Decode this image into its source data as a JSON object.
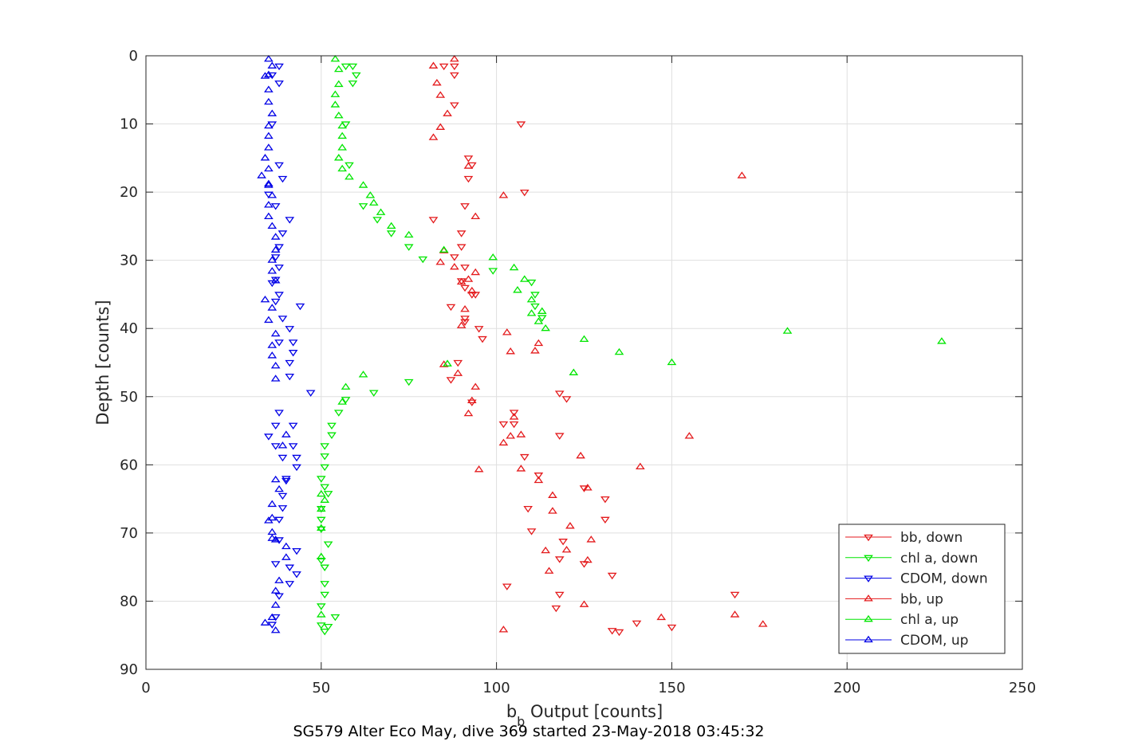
{
  "chart_data": {
    "type": "scatter",
    "caption": "SG579 Alter Eco May, dive 369 started 23-May-2018 03:45:32",
    "xlabel_main": "b",
    "xlabel_sub": "b",
    "xlabel_rest": " Output [counts]",
    "ylabel": "Depth [counts]",
    "xlim": [
      0,
      250
    ],
    "ylim": [
      0,
      90
    ],
    "y_reversed": true,
    "grid": true,
    "legend_position": "bottom-right",
    "xticks": [
      "0",
      "50",
      "100",
      "150",
      "200",
      "250"
    ],
    "yticks": [
      "0",
      "10",
      "20",
      "30",
      "40",
      "50",
      "60",
      "70",
      "80",
      "90"
    ],
    "series": [
      {
        "name": "bb, down",
        "color": "#e41a1c",
        "marker": "triangle-down",
        "x": [
          88,
          85,
          88,
          88,
          107,
          92,
          93,
          92,
          108,
          91,
          82,
          90,
          90,
          88,
          91,
          94,
          90,
          91,
          93,
          87,
          91,
          91,
          95,
          96,
          89,
          87,
          118,
          93,
          120,
          105,
          105,
          102,
          118,
          108,
          112,
          125,
          131,
          109,
          131,
          110,
          119,
          118,
          125,
          133,
          103,
          118,
          117,
          168,
          140,
          150,
          133,
          135
        ],
        "y": [
          1.5,
          1.5,
          2.8,
          7.2,
          10,
          15,
          16,
          18,
          20,
          22,
          24,
          26,
          28,
          29.5,
          31,
          35,
          33,
          34,
          35,
          36.8,
          38.5,
          39,
          40,
          41.5,
          45,
          47.5,
          49.5,
          50.8,
          50.3,
          52.3,
          54,
          54,
          55.7,
          58.8,
          61.5,
          63.4,
          65,
          66.4,
          68,
          69.7,
          71.2,
          73.8,
          74.5,
          76.2,
          77.8,
          79,
          81,
          79,
          83.2,
          83.8,
          84.3,
          84.5
        ]
      },
      {
        "name": "chl a, down",
        "color": "#00e600",
        "marker": "triangle-down",
        "x": [
          59,
          57,
          60,
          59,
          57,
          58,
          66,
          62,
          70,
          75,
          79,
          99,
          110,
          111,
          111,
          113,
          75,
          65,
          57,
          55,
          53,
          53,
          51,
          51,
          51,
          50,
          51,
          52,
          50,
          50,
          50,
          52,
          50,
          51,
          51,
          51,
          50,
          50,
          54,
          52,
          51
        ],
        "y": [
          1.5,
          1.5,
          2.8,
          4,
          10,
          16,
          24,
          22,
          26,
          28,
          29.8,
          31.5,
          33.2,
          35,
          36.7,
          38.4,
          47.8,
          49.4,
          50.4,
          52.3,
          54.2,
          55.6,
          57.2,
          58.7,
          60.3,
          62,
          63.2,
          64.2,
          66.4,
          68,
          69.4,
          71.6,
          74,
          75,
          77.4,
          79,
          80.7,
          83.5,
          82.3,
          83.7,
          84.4
        ]
      },
      {
        "name": "CDOM, down",
        "color": "#0000e6",
        "marker": "triangle-down",
        "x": [
          38,
          36,
          38,
          36,
          35,
          38,
          39,
          37,
          41,
          39,
          38,
          37,
          38,
          37,
          36,
          38,
          37,
          39,
          41,
          44,
          38,
          42,
          42,
          41,
          41,
          47,
          38,
          37,
          42,
          35,
          37,
          42,
          39,
          43,
          43,
          40,
          40,
          39,
          39,
          38,
          43,
          38,
          41,
          37,
          43,
          41,
          38,
          37,
          36
        ],
        "y": [
          1.5,
          2.8,
          4,
          10,
          20.3,
          16,
          18,
          22,
          24,
          26,
          28,
          29.5,
          31,
          32.8,
          33.3,
          35,
          36,
          38.5,
          40,
          36.7,
          42,
          42,
          43.5,
          45,
          47,
          49.4,
          52.3,
          54.2,
          54.2,
          55.8,
          57.2,
          57.2,
          58.9,
          58.9,
          60.3,
          62,
          62.3,
          64.5,
          66.3,
          68,
          72.6,
          71,
          75,
          74.5,
          76,
          77.4,
          79.2,
          82.3,
          83.4
        ]
      },
      {
        "name": "bb, up",
        "color": "#e41a1c",
        "marker": "triangle-up",
        "x": [
          88,
          82,
          83,
          84,
          86,
          84,
          82,
          92,
          170,
          102,
          94,
          85,
          84,
          88,
          94,
          92,
          90,
          93,
          91,
          90,
          103,
          104,
          111,
          112,
          85,
          89,
          94,
          93,
          92,
          104,
          102,
          155,
          95,
          124,
          141,
          112,
          116,
          116,
          121,
          127,
          120,
          126,
          114,
          115,
          125,
          102,
          168,
          176,
          147,
          126,
          107,
          107,
          105
        ],
        "y": [
          0.5,
          1.5,
          4,
          5.8,
          8.5,
          10.5,
          12,
          16.2,
          17.6,
          20.5,
          23.6,
          28.6,
          30.3,
          31,
          31.8,
          32.8,
          33.2,
          34.5,
          37.2,
          39.6,
          40.6,
          43.4,
          43.3,
          42.2,
          45.3,
          46.6,
          48.6,
          50.6,
          52.5,
          55.8,
          56.8,
          55.8,
          60.7,
          58.7,
          60.3,
          62.3,
          64.5,
          66.8,
          69,
          71,
          72.5,
          74,
          72.6,
          75.6,
          80.5,
          84.2,
          82,
          83.4,
          82.4,
          63.4,
          60.6,
          55.6,
          53
        ]
      },
      {
        "name": "chl a, up",
        "color": "#00e600",
        "marker": "triangle-up",
        "x": [
          54,
          55,
          55,
          54,
          54,
          55,
          56,
          56,
          56,
          55,
          56,
          58,
          62,
          64,
          65,
          67,
          70,
          75,
          85,
          99,
          105,
          108,
          106,
          110,
          110,
          113,
          114,
          112,
          183,
          125,
          227,
          135,
          150,
          122,
          62,
          86,
          57,
          56,
          50,
          51,
          50,
          50,
          50,
          50
        ],
        "y": [
          0.5,
          2,
          4.2,
          5.7,
          7.2,
          8.8,
          10.3,
          11.8,
          13.5,
          15,
          16.6,
          17.8,
          19,
          20.5,
          21.6,
          23,
          25,
          26.3,
          28.5,
          29.6,
          31.1,
          32.8,
          34.4,
          35.8,
          37.8,
          37.5,
          40,
          39,
          40.4,
          41.6,
          41.9,
          43.5,
          45,
          46.5,
          46.8,
          45.2,
          48.6,
          50.8,
          64.3,
          65.2,
          66.5,
          69.3,
          73.5,
          82
        ]
      },
      {
        "name": "CDOM, up",
        "color": "#0000e6",
        "marker": "triangle-up",
        "x": [
          35,
          36,
          35,
          34,
          35,
          35,
          36,
          35,
          35,
          35,
          34,
          35,
          35,
          33,
          35,
          36,
          35,
          35,
          36,
          37,
          37,
          36,
          36,
          37,
          34,
          36,
          35,
          37,
          36,
          36,
          37,
          37,
          40,
          39,
          37,
          38,
          36,
          36,
          35,
          36,
          37,
          36,
          40,
          40,
          38,
          37,
          37,
          36,
          34,
          37
        ],
        "y": [
          0.5,
          1.5,
          2.8,
          3,
          5,
          6.8,
          8.5,
          10.3,
          11.8,
          13.5,
          15,
          16.6,
          18.8,
          17.6,
          19,
          20.5,
          21.9,
          23.6,
          25,
          26.6,
          28.5,
          30,
          31.6,
          33,
          35.8,
          37,
          38.8,
          40.8,
          42.5,
          44,
          45.5,
          47.4,
          55.6,
          57.2,
          62.2,
          63.6,
          65.8,
          67.8,
          68.2,
          69.9,
          71,
          70.8,
          72,
          73.6,
          77,
          78.5,
          80.6,
          82.4,
          83.2,
          84.3
        ]
      }
    ]
  }
}
